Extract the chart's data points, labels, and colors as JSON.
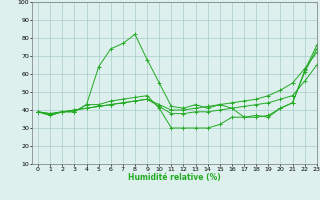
{
  "title": "",
  "xlabel": "Humidité relative (%)",
  "ylabel": "",
  "background_color": "#ddf0ee",
  "grid_color": "#aacccc",
  "line_color": "#22aa22",
  "xlim": [
    -0.5,
    23
  ],
  "ylim": [
    10,
    100
  ],
  "xticks": [
    0,
    1,
    2,
    3,
    4,
    5,
    6,
    7,
    8,
    9,
    10,
    11,
    12,
    13,
    14,
    15,
    16,
    17,
    18,
    19,
    20,
    21,
    22,
    23
  ],
  "yticks": [
    10,
    20,
    30,
    40,
    50,
    60,
    70,
    80,
    90,
    100
  ],
  "series": [
    {
      "x": [
        0,
        1,
        2,
        3,
        4,
        5,
        6,
        7,
        8,
        9,
        10,
        11,
        12,
        13,
        14,
        15,
        16,
        17,
        18,
        19,
        20,
        21,
        22,
        23
      ],
      "y": [
        39,
        37,
        39,
        39,
        43,
        64,
        74,
        77,
        82,
        68,
        55,
        42,
        41,
        43,
        41,
        43,
        41,
        36,
        37,
        36,
        41,
        44,
        62,
        76
      ]
    },
    {
      "x": [
        0,
        1,
        2,
        3,
        4,
        5,
        6,
        7,
        8,
        9,
        10,
        11,
        12,
        13,
        14,
        15,
        16,
        17,
        18,
        19,
        20,
        21,
        22,
        23
      ],
      "y": [
        39,
        37,
        39,
        39,
        43,
        43,
        45,
        46,
        47,
        48,
        41,
        30,
        30,
        30,
        30,
        32,
        36,
        36,
        36,
        37,
        41,
        44,
        61,
        74
      ]
    },
    {
      "x": [
        0,
        1,
        2,
        3,
        4,
        5,
        6,
        7,
        8,
        9,
        10,
        11,
        12,
        13,
        14,
        15,
        16,
        17,
        18,
        19,
        20,
        21,
        22,
        23
      ],
      "y": [
        39,
        38,
        39,
        40,
        41,
        42,
        43,
        44,
        45,
        46,
        42,
        38,
        38,
        39,
        39,
        40,
        41,
        42,
        43,
        44,
        46,
        48,
        56,
        65
      ]
    },
    {
      "x": [
        0,
        1,
        2,
        3,
        4,
        5,
        6,
        7,
        8,
        9,
        10,
        11,
        12,
        13,
        14,
        15,
        16,
        17,
        18,
        19,
        20,
        21,
        22,
        23
      ],
      "y": [
        39,
        38,
        39,
        40,
        41,
        42,
        43,
        44,
        45,
        46,
        43,
        40,
        40,
        41,
        42,
        43,
        44,
        45,
        46,
        48,
        51,
        55,
        63,
        72
      ]
    }
  ]
}
